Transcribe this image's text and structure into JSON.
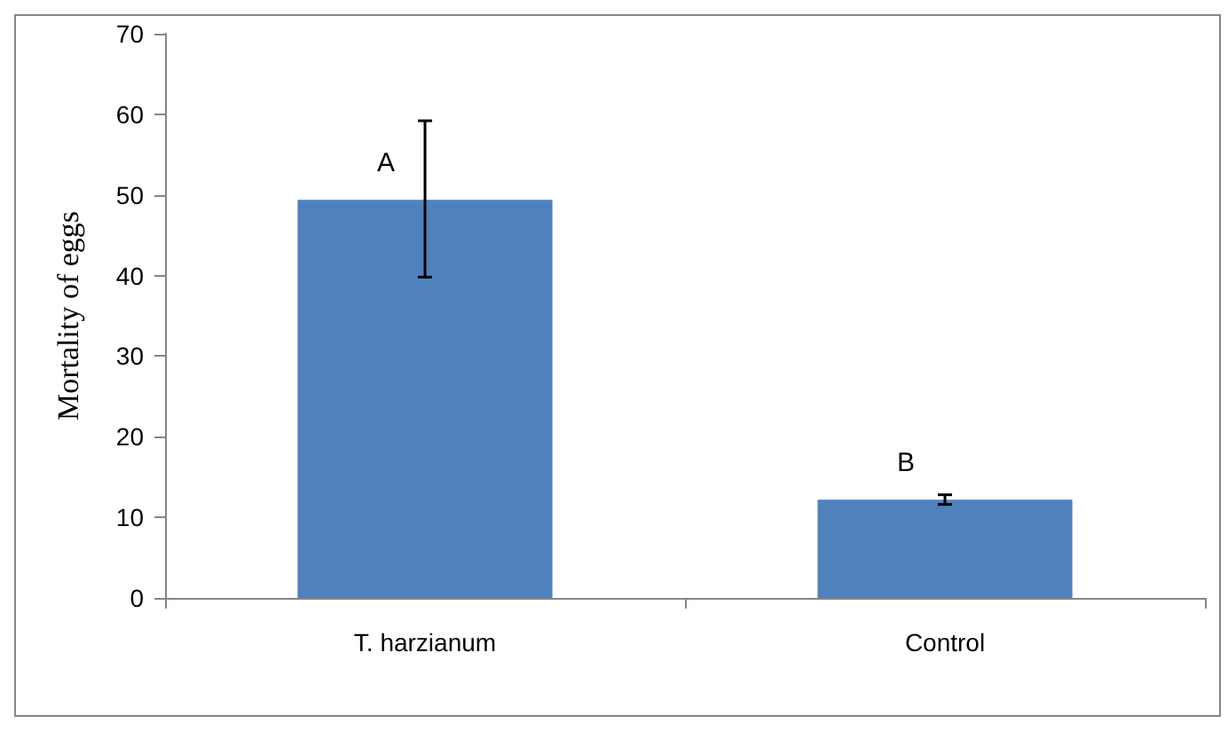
{
  "chart_data": {
    "type": "bar",
    "ylabel": "Mortality of eggs",
    "categories": [
      "T. harzianum",
      "Control"
    ],
    "values": [
      49.4,
      12.2
    ],
    "color": "#4f81bd",
    "errors": [
      [
        39.8,
        59.2
      ],
      [
        11.6,
        12.8
      ]
    ],
    "ylim": [
      0,
      70
    ],
    "yticks": [
      0,
      10,
      20,
      30,
      40,
      50,
      60,
      70
    ],
    "grid": false,
    "annotations": [
      {
        "text": "A",
        "x": "T. harzianum",
        "y": 49.4
      },
      {
        "text": "B",
        "x": "Control",
        "y": 12.2
      }
    ]
  }
}
